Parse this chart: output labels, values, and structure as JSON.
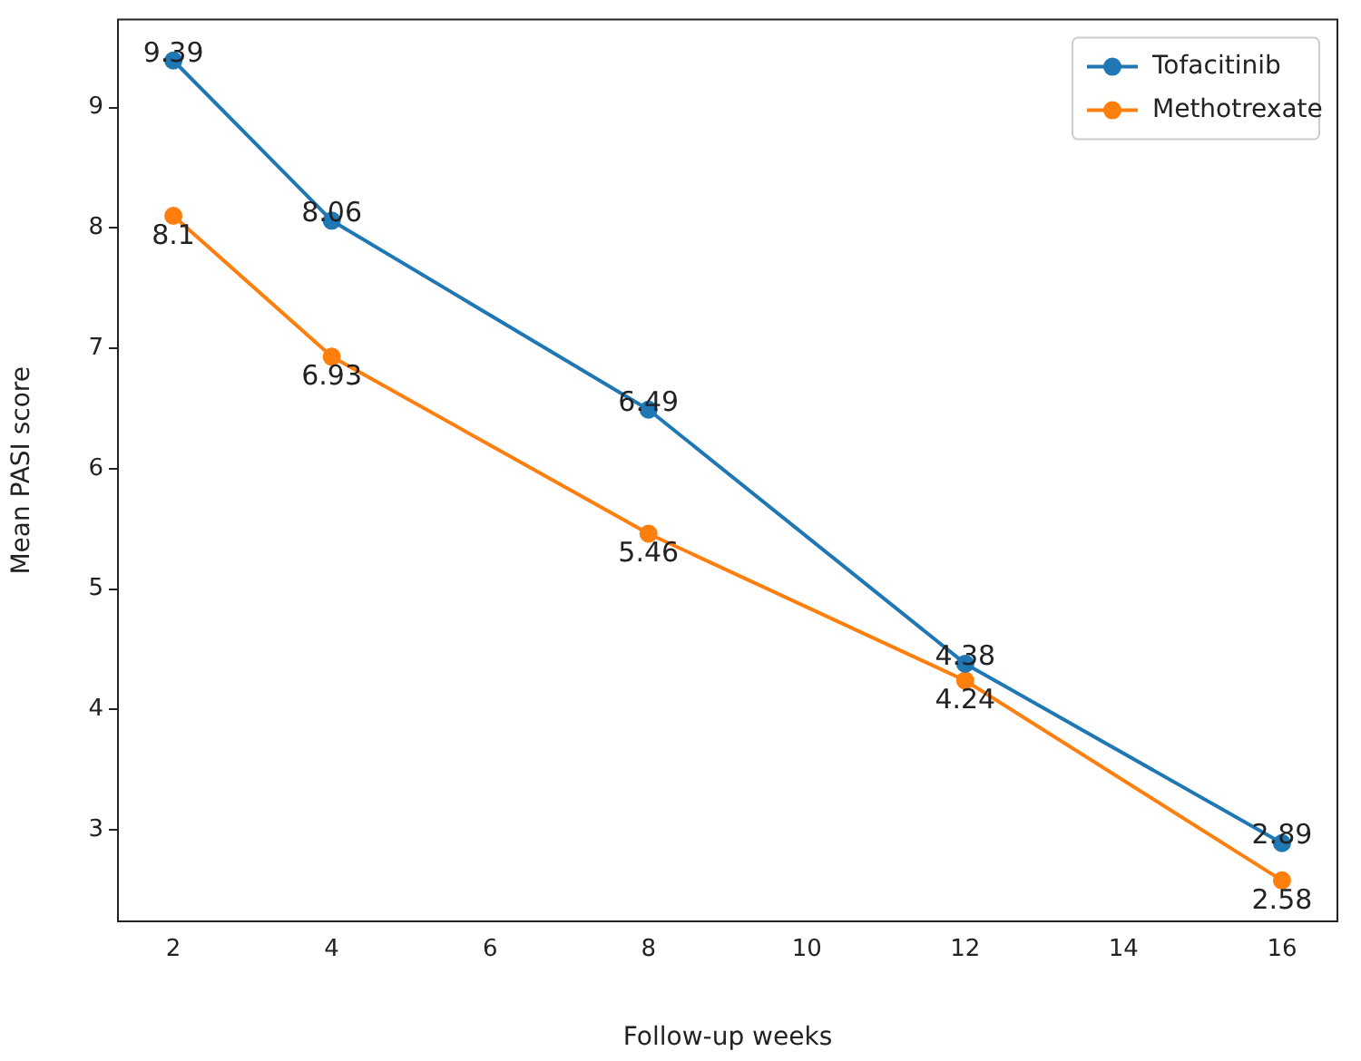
{
  "chart_data": {
    "type": "line",
    "xlabel": "Follow-up weeks",
    "ylabel": "Mean PASI score",
    "x": [
      2,
      4,
      8,
      12,
      16
    ],
    "series": [
      {
        "name": "Tofacitinib",
        "color": "#1f77b4",
        "values": [
          9.39,
          8.06,
          6.49,
          4.38,
          2.89
        ]
      },
      {
        "name": "Methotrexate",
        "color": "#ff7f0e",
        "values": [
          8.1,
          6.93,
          5.46,
          4.24,
          2.58
        ]
      }
    ],
    "xlim": [
      1.3,
      16.7
    ],
    "xticks": [
      2,
      4,
      6,
      8,
      10,
      12,
      14,
      16
    ],
    "ylim": [
      2.24,
      9.73
    ],
    "yticks": [
      3,
      4,
      5,
      6,
      7,
      8,
      9
    ],
    "data_labels": true,
    "legend": "top right",
    "marker": "circle",
    "line_style": "solid",
    "grid": false
  }
}
